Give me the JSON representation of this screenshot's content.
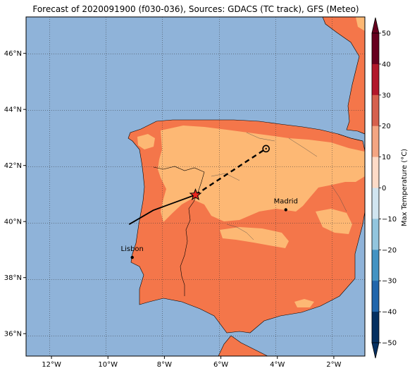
{
  "title": "Forecast of 2020091900 (f030-036), Sources: GDACS (TC track), GFS (Meteo)",
  "map": {
    "lon_range": [
      -12.9,
      -0.9
    ],
    "lat_range": [
      35.2,
      47.3
    ],
    "x_ticks": [
      "12°W",
      "10°W",
      "8°W",
      "6°W",
      "4°W",
      "2°W"
    ],
    "y_ticks": [
      "46°N",
      "44°N",
      "42°N",
      "40°N",
      "38°N",
      "36°N"
    ],
    "cities": [
      {
        "name": "Madrid",
        "lon": -3.7,
        "lat": 40.42
      },
      {
        "name": "Lisbon",
        "lon": -9.14,
        "lat": 38.72
      }
    ],
    "track_observed": [
      [
        -9.25,
        39.9
      ],
      [
        -8.4,
        40.4
      ],
      [
        -6.9,
        40.95
      ]
    ],
    "track_forecast": [
      [
        -6.9,
        40.95
      ],
      [
        -4.4,
        42.6
      ]
    ],
    "current_position": [
      -6.9,
      40.95
    ],
    "forecast_position": [
      -4.4,
      42.6
    ],
    "colors": {
      "ocean": "#8fb3d9",
      "temp_10_20": "#fdb874",
      "temp_20_30": "#f4764a",
      "track": "#000000",
      "storm_marker": "#e8261e"
    }
  },
  "colorbar": {
    "label": "Max Temperature (°C)",
    "ticks": [
      "50",
      "40",
      "30",
      "20",
      "10",
      "0",
      "−10",
      "−20",
      "−30",
      "−40",
      "−50"
    ],
    "colors": [
      "#67001f",
      "#b2182b",
      "#d6604d",
      "#f4a582",
      "#fddbc7",
      "#d1e5f0",
      "#92c5de",
      "#4393c3",
      "#2166ac",
      "#053061"
    ]
  }
}
